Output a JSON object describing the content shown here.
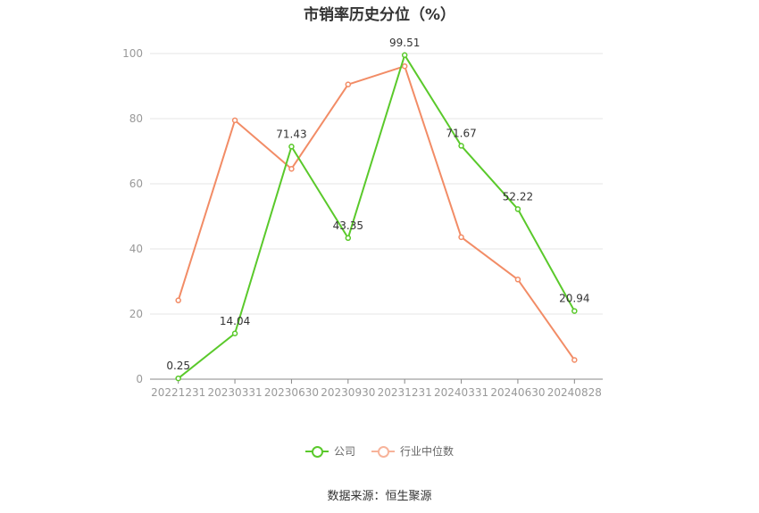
{
  "chart_data": {
    "type": "line",
    "title": "市销率历史分位（%）",
    "categories": [
      "20221231",
      "20230331",
      "20230630",
      "20230930",
      "20231231",
      "20240331",
      "20240630",
      "20240828"
    ],
    "ylim": [
      0,
      100
    ],
    "yticks": [
      0,
      20,
      40,
      60,
      80,
      100
    ],
    "grid": true,
    "legend_position": "bottom",
    "series": [
      {
        "name": "公司",
        "color": "#5ac92b",
        "values": [
          0.25,
          14.04,
          71.43,
          43.35,
          99.51,
          71.67,
          52.22,
          20.94
        ],
        "labels": [
          "0.25",
          "14.04",
          "71.43",
          "43.35",
          "99.51",
          "71.67",
          "52.22",
          "20.94"
        ]
      },
      {
        "name": "行业中位数",
        "color": "#f28c66",
        "values": [
          24.2,
          79.5,
          64.6,
          90.5,
          96.1,
          43.6,
          30.6,
          5.9
        ]
      }
    ]
  },
  "source": "数据来源：恒生聚源"
}
